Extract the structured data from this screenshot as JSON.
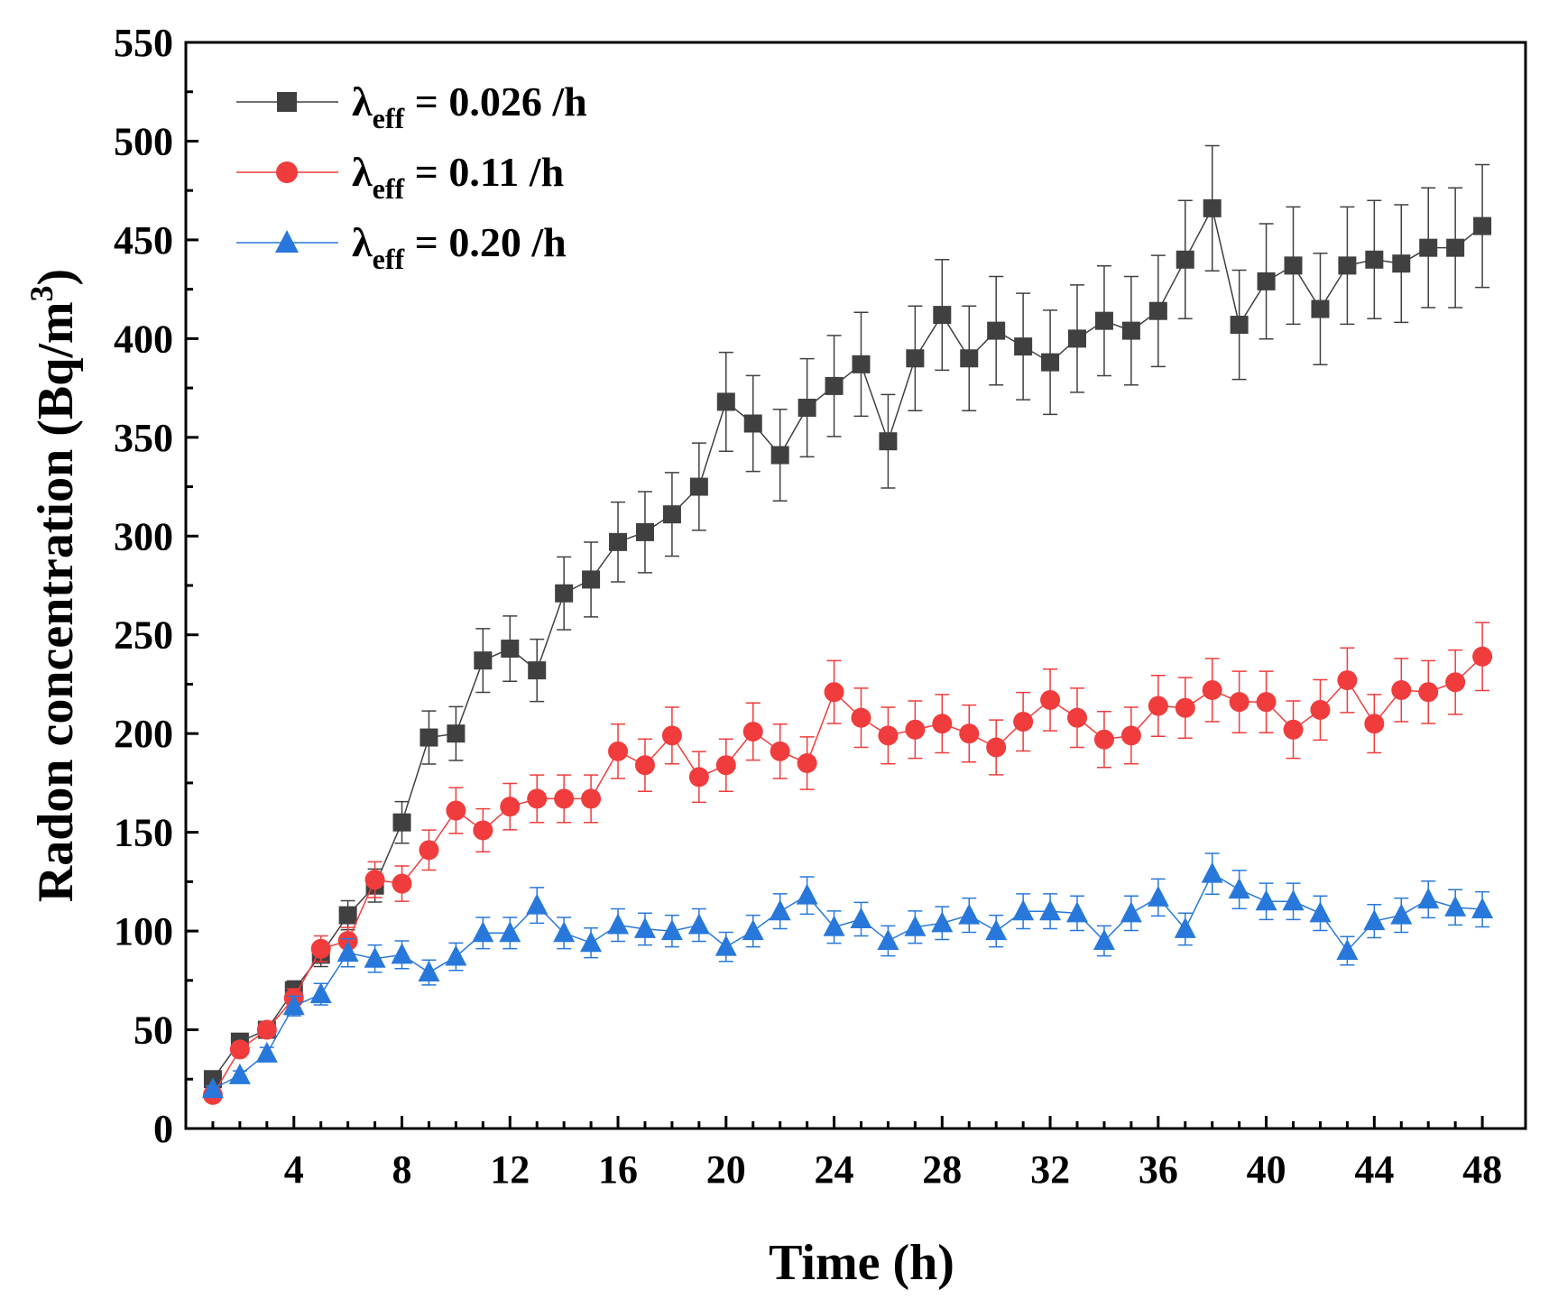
{
  "chart_data": {
    "type": "line",
    "title": "",
    "xlabel": "Time (h)",
    "ylabel": "Radon concentration (Bq/m",
    "ylabel_sup": "3",
    "ylabel_close": ")",
    "xlim": [
      0,
      49.6
    ],
    "ylim": [
      0,
      550
    ],
    "xticks": [
      4,
      8,
      12,
      16,
      20,
      24,
      28,
      32,
      36,
      40,
      44,
      48
    ],
    "yticks": [
      0,
      50,
      100,
      150,
      200,
      250,
      300,
      350,
      400,
      450,
      500,
      550
    ],
    "grid": false,
    "legend_position": "top-left",
    "x": [
      1,
      2,
      3,
      4,
      5,
      6,
      7,
      8,
      9,
      10,
      11,
      12,
      13,
      14,
      15,
      16,
      17,
      18,
      19,
      20,
      21,
      22,
      23,
      24,
      25,
      26,
      27,
      28,
      29,
      30,
      31,
      32,
      33,
      34,
      35,
      36,
      37,
      38,
      39,
      40,
      41,
      42,
      43,
      44,
      45,
      46,
      47,
      48
    ],
    "series": [
      {
        "name": "λeff = 0.026 /h",
        "legend_symbol": "λ",
        "legend_sub": "eff",
        "legend_rest": " = 0.026 /h",
        "color": "#404040",
        "marker": "square",
        "yerr_relative": 0.068,
        "values": [
          25,
          44,
          50,
          70,
          88,
          108,
          123,
          155,
          198,
          200,
          237,
          243,
          232,
          271,
          278,
          297,
          302,
          311,
          325,
          368,
          357,
          341,
          365,
          376,
          387,
          348,
          390,
          412,
          390,
          404,
          396,
          388,
          400,
          409,
          404,
          414,
          440,
          466,
          407,
          429,
          437,
          415,
          437,
          440,
          438,
          446,
          446,
          457
        ]
      },
      {
        "name": "λeff = 0.11 /h",
        "legend_symbol": "λ",
        "legend_sub": "eff",
        "legend_rest": " = 0.11 /h",
        "color": "#f03c3c",
        "marker": "circle",
        "yerr_relative": 0.072,
        "values": [
          17,
          40,
          50,
          66,
          91,
          95,
          126,
          124,
          141,
          161,
          151,
          163,
          167,
          167,
          167,
          191,
          184,
          199,
          178,
          184,
          201,
          191,
          185,
          221,
          208,
          199,
          202,
          205,
          200,
          193,
          206,
          217,
          208,
          197,
          199,
          214,
          213,
          222,
          216,
          216,
          202,
          212,
          227,
          205,
          222,
          221,
          226,
          239
        ]
      },
      {
        "name": "λeff = 0.20 /h",
        "legend_symbol": "λ",
        "legend_sub": "eff",
        "legend_rest": " = 0.20 /h",
        "color": "#2878dc",
        "marker": "triangle",
        "yerr_relative": 0.08,
        "values": [
          20,
          27,
          38,
          62,
          68,
          89,
          86,
          88,
          79,
          87,
          99,
          99,
          113,
          99,
          94,
          103,
          101,
          100,
          103,
          92,
          100,
          110,
          118,
          102,
          106,
          95,
          102,
          104,
          108,
          100,
          110,
          110,
          109,
          95,
          109,
          117,
          101,
          129,
          121,
          115,
          115,
          109,
          90,
          105,
          108,
          116,
          112,
          111
        ]
      }
    ]
  }
}
